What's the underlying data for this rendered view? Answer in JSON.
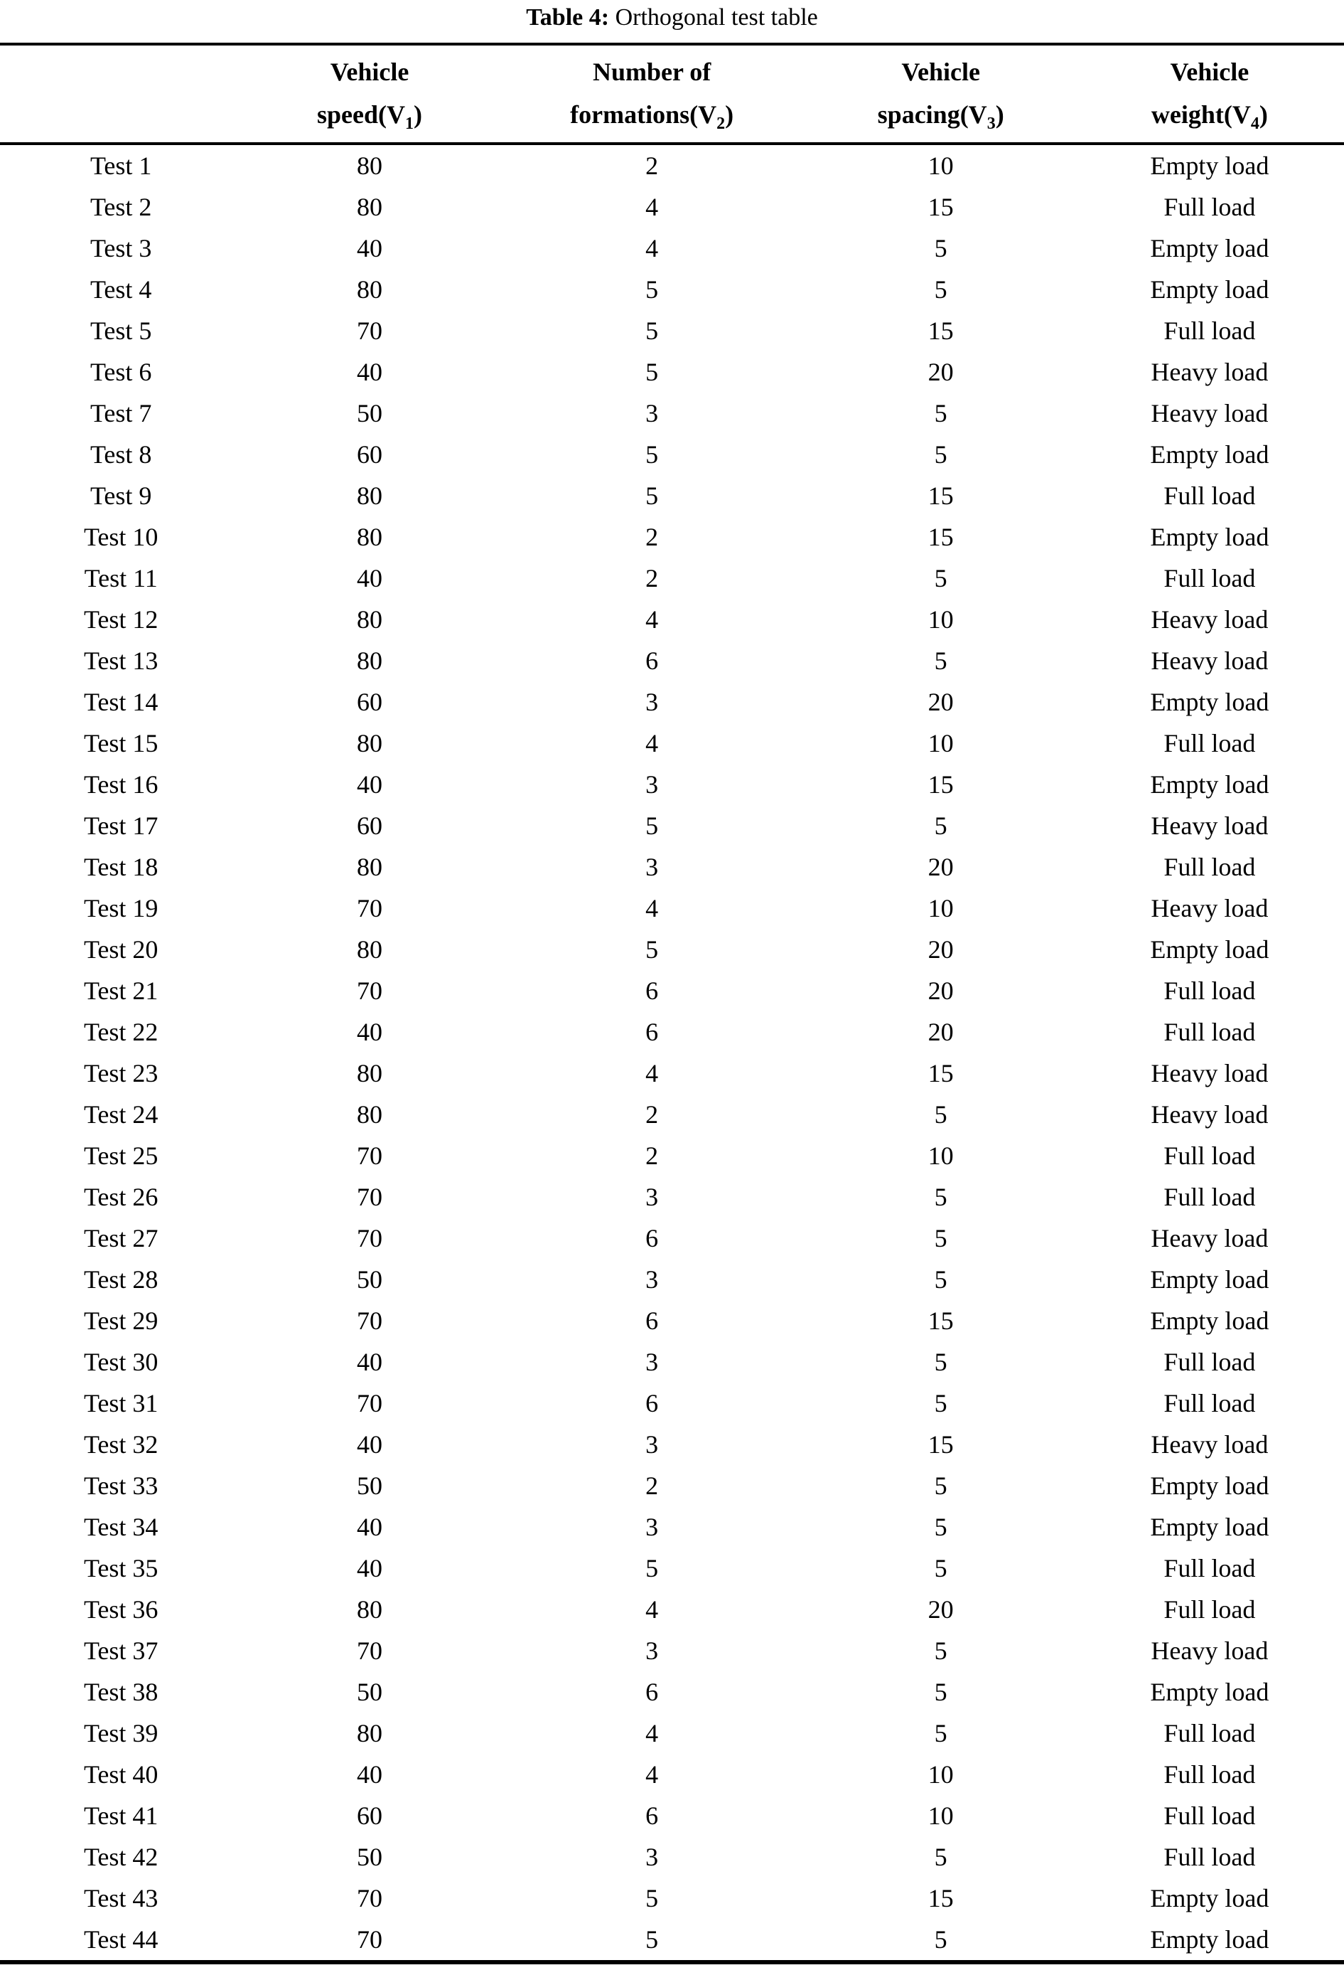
{
  "page": {
    "background": "#ffffff",
    "text_color": "#000000"
  },
  "title": {
    "label": "Table 4:",
    "text": " Orthogonal test table"
  },
  "table": {
    "headers": [
      {
        "top": "",
        "pre": "",
        "sub": "",
        "post": ""
      },
      {
        "top": "Vehicle",
        "pre": "speed(V",
        "sub": "1",
        "post": ")"
      },
      {
        "top": "Number of",
        "pre": "formations(V",
        "sub": "2",
        "post": ")"
      },
      {
        "top": "Vehicle",
        "pre": "spacing(V",
        "sub": "3",
        "post": ")"
      },
      {
        "top": "Vehicle",
        "pre": "weight(V",
        "sub": "4",
        "post": ")"
      }
    ],
    "rows": [
      [
        "Test 1",
        "80",
        "2",
        "10",
        "Empty load"
      ],
      [
        "Test 2",
        "80",
        "4",
        "15",
        "Full load"
      ],
      [
        "Test 3",
        "40",
        "4",
        "5",
        "Empty load"
      ],
      [
        "Test 4",
        "80",
        "5",
        "5",
        "Empty load"
      ],
      [
        "Test 5",
        "70",
        "5",
        "15",
        "Full load"
      ],
      [
        "Test 6",
        "40",
        "5",
        "20",
        "Heavy load"
      ],
      [
        "Test 7",
        "50",
        "3",
        "5",
        "Heavy load"
      ],
      [
        "Test 8",
        "60",
        "5",
        "5",
        "Empty load"
      ],
      [
        "Test 9",
        "80",
        "5",
        "15",
        "Full load"
      ],
      [
        "Test 10",
        "80",
        "2",
        "15",
        "Empty load"
      ],
      [
        "Test 11",
        "40",
        "2",
        "5",
        "Full load"
      ],
      [
        "Test 12",
        "80",
        "4",
        "10",
        "Heavy load"
      ],
      [
        "Test 13",
        "80",
        "6",
        "5",
        "Heavy load"
      ],
      [
        "Test 14",
        "60",
        "3",
        "20",
        "Empty load"
      ],
      [
        "Test 15",
        "80",
        "4",
        "10",
        "Full load"
      ],
      [
        "Test 16",
        "40",
        "3",
        "15",
        "Empty load"
      ],
      [
        "Test 17",
        "60",
        "5",
        "5",
        "Heavy load"
      ],
      [
        "Test 18",
        "80",
        "3",
        "20",
        "Full load"
      ],
      [
        "Test 19",
        "70",
        "4",
        "10",
        "Heavy load"
      ],
      [
        "Test 20",
        "80",
        "5",
        "20",
        "Empty load"
      ],
      [
        "Test 21",
        "70",
        "6",
        "20",
        "Full load"
      ],
      [
        "Test 22",
        "40",
        "6",
        "20",
        "Full load"
      ],
      [
        "Test 23",
        "80",
        "4",
        "15",
        "Heavy load"
      ],
      [
        "Test 24",
        "80",
        "2",
        "5",
        "Heavy load"
      ],
      [
        "Test 25",
        "70",
        "2",
        "10",
        "Full load"
      ],
      [
        "Test 26",
        "70",
        "3",
        "5",
        "Full load"
      ],
      [
        "Test 27",
        "70",
        "6",
        "5",
        "Heavy load"
      ],
      [
        "Test 28",
        "50",
        "3",
        "5",
        "Empty load"
      ],
      [
        "Test 29",
        "70",
        "6",
        "15",
        "Empty load"
      ],
      [
        "Test 30",
        "40",
        "3",
        "5",
        "Full load"
      ],
      [
        "Test 31",
        "70",
        "6",
        "5",
        "Full load"
      ],
      [
        "Test 32",
        "40",
        "3",
        "15",
        "Heavy load"
      ],
      [
        "Test 33",
        "50",
        "2",
        "5",
        "Empty load"
      ],
      [
        "Test 34",
        "40",
        "3",
        "5",
        "Empty load"
      ],
      [
        "Test 35",
        "40",
        "5",
        "5",
        "Full load"
      ],
      [
        "Test 36",
        "80",
        "4",
        "20",
        "Full load"
      ],
      [
        "Test 37",
        "70",
        "3",
        "5",
        "Heavy load"
      ],
      [
        "Test 38",
        "50",
        "6",
        "5",
        "Empty load"
      ],
      [
        "Test 39",
        "80",
        "4",
        "5",
        "Full load"
      ],
      [
        "Test 40",
        "40",
        "4",
        "10",
        "Full load"
      ],
      [
        "Test 41",
        "60",
        "6",
        "10",
        "Full load"
      ],
      [
        "Test 42",
        "50",
        "3",
        "5",
        "Full load"
      ],
      [
        "Test 43",
        "70",
        "5",
        "15",
        "Empty load"
      ],
      [
        "Test 44",
        "70",
        "5",
        "5",
        "Empty load"
      ]
    ]
  }
}
